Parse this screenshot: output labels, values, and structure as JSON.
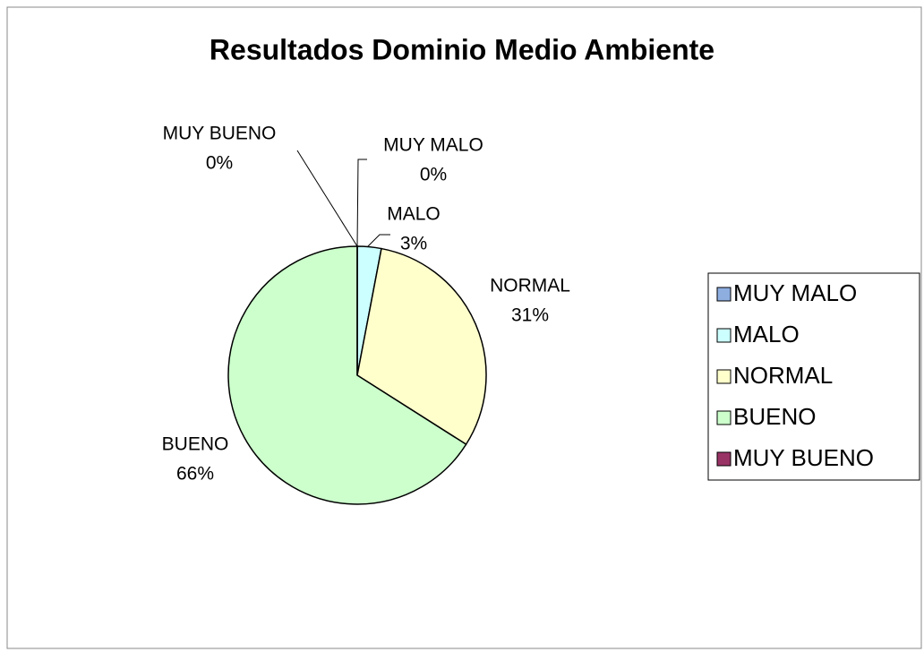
{
  "chart_data": {
    "type": "pie",
    "title": "Resultados Dominio Medio Ambiente",
    "categories": [
      "MUY MALO",
      "MALO",
      "NORMAL",
      "BUENO",
      "MUY BUENO"
    ],
    "values": [
      0,
      3,
      31,
      66,
      0
    ],
    "value_labels": [
      "0%",
      "3%",
      "31%",
      "66%",
      "0%"
    ],
    "colors": [
      "#8eaee0",
      "#ccffff",
      "#ffffcc",
      "#ccffcc",
      "#993366"
    ],
    "legend": "right"
  }
}
